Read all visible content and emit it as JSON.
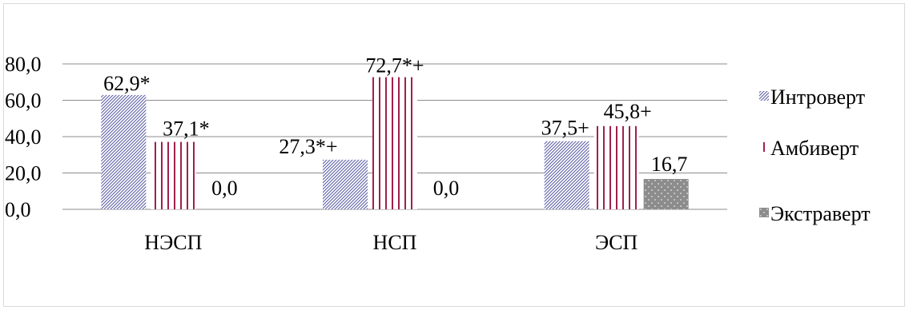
{
  "chart_data": {
    "type": "bar",
    "categories": [
      "НЭСП",
      "НСП",
      "ЭСП"
    ],
    "series": [
      {
        "name": "Интроверт",
        "values": [
          62.9,
          27.3,
          37.5
        ],
        "labels": [
          "62,9*",
          "27,3*+",
          "37,5+"
        ],
        "pattern": "diagonal-hatch",
        "color": "#5b5ea6"
      },
      {
        "name": "Амбиверт",
        "values": [
          37.1,
          72.7,
          45.8
        ],
        "labels": [
          "37,1*",
          "72,7*+",
          "45,8+"
        ],
        "pattern": "vertical-stripes",
        "color": "#a0204a"
      },
      {
        "name": "Экстраверт",
        "values": [
          0.0,
          0.0,
          16.7
        ],
        "labels": [
          "0,0",
          "0,0",
          "16,7"
        ],
        "pattern": "dotted",
        "color": "#8c8c8c"
      }
    ],
    "yticks": [
      "0,0",
      "20,0",
      "40,0",
      "60,0",
      "80,0"
    ],
    "ylim": [
      0,
      80
    ],
    "grid": true,
    "legend_position": "right"
  }
}
